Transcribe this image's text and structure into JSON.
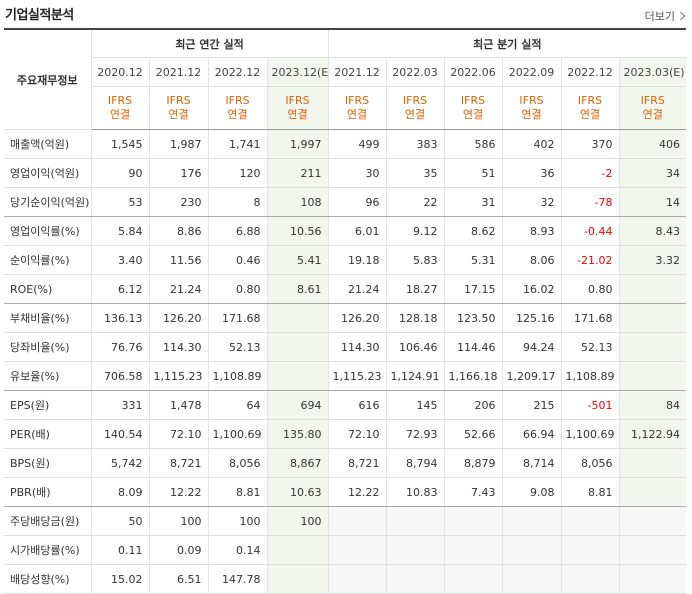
{
  "title": "기업실적분석",
  "more_label": "더보기",
  "header": {
    "row_label": "주요재무정보",
    "annual_label": "최근 연간 실적",
    "quarter_label": "최근 분기 실적",
    "annual_periods": [
      "2020.12",
      "2021.12",
      "2022.12",
      "2023.12(E)"
    ],
    "quarter_periods": [
      "2021.12",
      "2022.03",
      "2022.06",
      "2022.09",
      "2022.12",
      "2023.03(E)"
    ],
    "basis_top": "IFRS",
    "basis_bottom": "연결"
  },
  "rows": [
    {
      "label": "매출액(억원)",
      "values": [
        "1,545",
        "1,987",
        "1,741",
        "1,997",
        "499",
        "383",
        "586",
        "402",
        "370",
        "406"
      ]
    },
    {
      "label": "영업이익(억원)",
      "values": [
        "90",
        "176",
        "120",
        "211",
        "30",
        "35",
        "51",
        "36",
        "-2",
        "34"
      ]
    },
    {
      "label": "당기순이익(억원)",
      "values": [
        "53",
        "230",
        "8",
        "108",
        "96",
        "22",
        "31",
        "32",
        "-78",
        "14"
      ]
    },
    {
      "label": "영업이익률(%)",
      "values": [
        "5.84",
        "8.86",
        "6.88",
        "10.56",
        "6.01",
        "9.12",
        "8.62",
        "8.93",
        "-0.44",
        "8.43"
      ]
    },
    {
      "label": "순이익률(%)",
      "values": [
        "3.40",
        "11.56",
        "0.46",
        "5.41",
        "19.18",
        "5.83",
        "5.31",
        "8.06",
        "-21.02",
        "3.32"
      ]
    },
    {
      "label": "ROE(%)",
      "values": [
        "6.12",
        "21.24",
        "0.80",
        "8.61",
        "21.24",
        "18.27",
        "17.15",
        "16.02",
        "0.80",
        ""
      ]
    },
    {
      "label": "부채비율(%)",
      "values": [
        "136.13",
        "126.20",
        "171.68",
        "",
        "126.20",
        "128.18",
        "123.50",
        "125.16",
        "171.68",
        ""
      ]
    },
    {
      "label": "당좌비율(%)",
      "values": [
        "76.76",
        "114.30",
        "52.13",
        "",
        "114.30",
        "106.46",
        "114.46",
        "94.24",
        "52.13",
        ""
      ]
    },
    {
      "label": "유보율(%)",
      "values": [
        "706.58",
        "1,115.23",
        "1,108.89",
        "",
        "1,115.23",
        "1,124.91",
        "1,166.18",
        "1,209.17",
        "1,108.89",
        ""
      ]
    },
    {
      "label": "EPS(원)",
      "values": [
        "331",
        "1,478",
        "64",
        "694",
        "616",
        "145",
        "206",
        "215",
        "-501",
        "84"
      ]
    },
    {
      "label": "PER(배)",
      "values": [
        "140.54",
        "72.10",
        "1,100.69",
        "135.80",
        "72.10",
        "72.93",
        "52.66",
        "66.94",
        "1,100.69",
        "1,122.94"
      ]
    },
    {
      "label": "BPS(원)",
      "values": [
        "5,742",
        "8,721",
        "8,056",
        "8,867",
        "8,721",
        "8,794",
        "8,879",
        "8,714",
        "8,056",
        ""
      ]
    },
    {
      "label": "PBR(배)",
      "values": [
        "8.09",
        "12.22",
        "8.81",
        "10.63",
        "12.22",
        "10.83",
        "7.43",
        "9.08",
        "8.81",
        ""
      ]
    },
    {
      "label": "주당배당금(원)",
      "values": [
        "50",
        "100",
        "100",
        "100",
        "",
        "",
        "",
        "",
        "",
        ""
      ]
    },
    {
      "label": "시가배당률(%)",
      "values": [
        "0.11",
        "0.09",
        "0.14",
        "",
        "",
        "",
        "",
        "",
        "",
        ""
      ]
    },
    {
      "label": "배당성향(%)",
      "values": [
        "15.02",
        "6.51",
        "147.78",
        "",
        "",
        "",
        "",
        "",
        "",
        ""
      ]
    }
  ],
  "colors": {
    "estimate_bg": "#f1f7ee",
    "negative": "#e00000",
    "basis": "#e06000"
  }
}
